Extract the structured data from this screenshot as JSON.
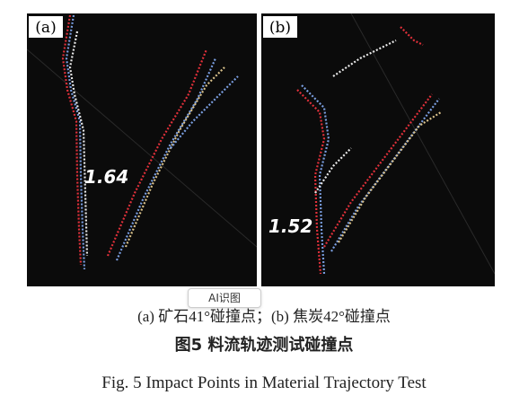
{
  "panels": [
    {
      "label": "(a)",
      "value_label": "1.64"
    },
    {
      "label": "(b)",
      "value_label": "1.52"
    }
  ],
  "overlay": {
    "button": "AI识图"
  },
  "caption": {
    "subcaption": "(a) 矿石41°碰撞点；(b) 焦炭42°碰撞点",
    "title_zh": "图5  料流轨迹测试碰撞点",
    "title_en": "Fig. 5  Impact Points in Material Trajectory Test"
  }
}
